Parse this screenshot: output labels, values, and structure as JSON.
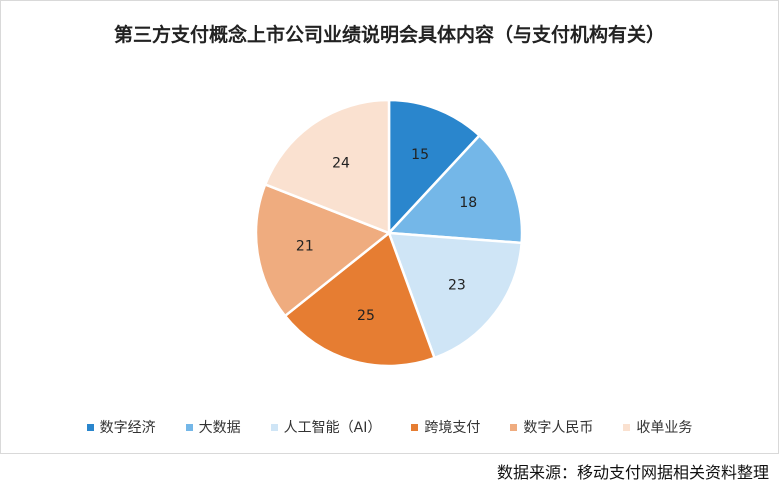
{
  "chart_data": {
    "type": "pie",
    "title": "第三方支付概念上市公司业绩说明会具体内容（与支付机构有关）",
    "categories": [
      "数字经济",
      "大数据",
      "人工智能（AI）",
      "跨境支付",
      "数字人民币",
      "收单业务"
    ],
    "values": [
      15,
      18,
      23,
      25,
      21,
      24
    ],
    "colors": [
      "#2a86cd",
      "#74b7e8",
      "#cfe5f6",
      "#e67d32",
      "#efac7f",
      "#fae1d0"
    ],
    "start_angle": "12 o'clock",
    "direction": "clockwise",
    "legend_position": "bottom"
  },
  "source": "数据来源：移动支付网据相关资料整理",
  "watermark": "移动支付网"
}
